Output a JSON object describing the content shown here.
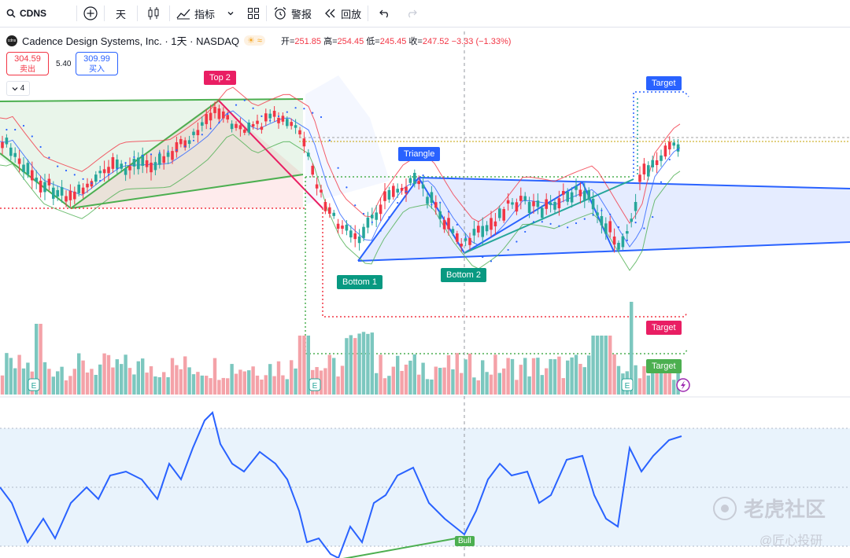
{
  "toolbar": {
    "symbol": "CDNS",
    "interval": "天",
    "indicators": "指标",
    "alerts": "警报",
    "replay": "回放"
  },
  "title": {
    "name": "Cadence Design Systems, Inc. · 1天 · NASDAQ",
    "open_label": "开",
    "open": "251.85",
    "high_label": "高",
    "high": "254.45",
    "low_label": "低",
    "low": "245.45",
    "close_label": "收",
    "close": "247.52",
    "change": "−3.33 (−1.33%)"
  },
  "trade": {
    "sell_price": "304.59",
    "sell_label": "卖出",
    "spread": "5.40",
    "buy_price": "309.99",
    "buy_label": "买入"
  },
  "collapse_count": "4",
  "labels": {
    "top2": "Top 2",
    "triangle": "Triangle",
    "bottom1": "Bottom 1",
    "bottom2": "Bottom 2",
    "target_blue": "Target",
    "target_red": "Target",
    "target_green": "Target",
    "bull": "Bull",
    "earnings": "E"
  },
  "watermark": {
    "main": "老虎社区",
    "sub": "@匠心投研"
  },
  "colors": {
    "up": "#26a69a",
    "down": "#f23645",
    "blue": "#2962ff",
    "oscillator": "#2962ff"
  }
}
